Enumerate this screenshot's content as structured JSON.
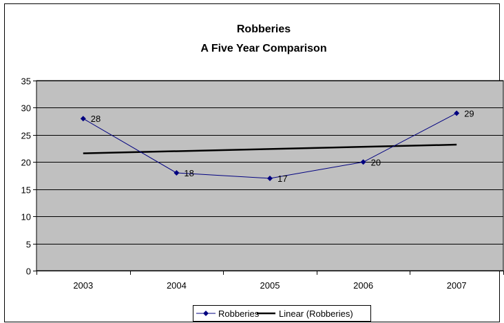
{
  "chart_data": {
    "type": "line",
    "title": "Robberies",
    "subtitle": "A Five Year Comparison",
    "xlabel": "",
    "ylabel": "",
    "categories": [
      "2003",
      "2004",
      "2005",
      "2006",
      "2007"
    ],
    "ylim": [
      0,
      35
    ],
    "yticks": [
      "0",
      "5",
      "10",
      "15",
      "20",
      "25",
      "30",
      "35"
    ],
    "grid": true,
    "legend_position": "bottom",
    "series": [
      {
        "name": "Robberies",
        "values": [
          28,
          18,
          17,
          20,
          29
        ],
        "labels": [
          "28",
          "18",
          "17",
          "20",
          "29"
        ],
        "color": "#000080",
        "marker": "diamond"
      }
    ],
    "trendline": {
      "name": "Linear (Robberies)",
      "type": "linear",
      "color": "#000000"
    },
    "colors": {
      "plot_area": "#c0c0c0",
      "gridline": "#000000",
      "border": "#000000"
    }
  }
}
